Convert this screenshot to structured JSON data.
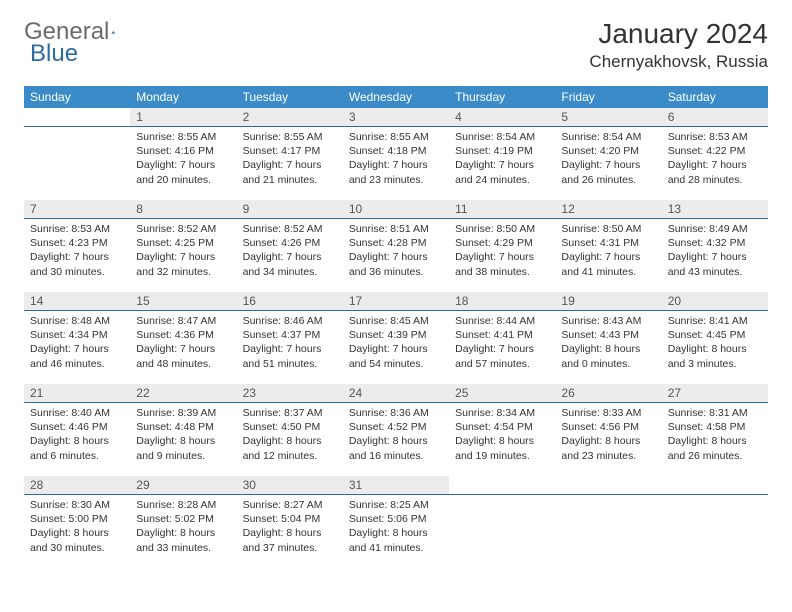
{
  "brand": {
    "name_part1": "General",
    "name_part2": "Blue"
  },
  "colors": {
    "header_bg": "#3b8bc8",
    "header_text": "#ffffff",
    "daynum_bg": "#ececec",
    "daynum_border": "#2d6aa0",
    "body_text": "#333333",
    "logo_gray": "#6a6a6a",
    "logo_blue": "#2d6aa0"
  },
  "title": "January 2024",
  "location": "Chernyakhovsk, Russia",
  "day_headers": [
    "Sunday",
    "Monday",
    "Tuesday",
    "Wednesday",
    "Thursday",
    "Friday",
    "Saturday"
  ],
  "weeks": [
    [
      {
        "num": "",
        "sunrise": "",
        "sunset": "",
        "daylight": ""
      },
      {
        "num": "1",
        "sunrise": "Sunrise: 8:55 AM",
        "sunset": "Sunset: 4:16 PM",
        "daylight": "Daylight: 7 hours and 20 minutes."
      },
      {
        "num": "2",
        "sunrise": "Sunrise: 8:55 AM",
        "sunset": "Sunset: 4:17 PM",
        "daylight": "Daylight: 7 hours and 21 minutes."
      },
      {
        "num": "3",
        "sunrise": "Sunrise: 8:55 AM",
        "sunset": "Sunset: 4:18 PM",
        "daylight": "Daylight: 7 hours and 23 minutes."
      },
      {
        "num": "4",
        "sunrise": "Sunrise: 8:54 AM",
        "sunset": "Sunset: 4:19 PM",
        "daylight": "Daylight: 7 hours and 24 minutes."
      },
      {
        "num": "5",
        "sunrise": "Sunrise: 8:54 AM",
        "sunset": "Sunset: 4:20 PM",
        "daylight": "Daylight: 7 hours and 26 minutes."
      },
      {
        "num": "6",
        "sunrise": "Sunrise: 8:53 AM",
        "sunset": "Sunset: 4:22 PM",
        "daylight": "Daylight: 7 hours and 28 minutes."
      }
    ],
    [
      {
        "num": "7",
        "sunrise": "Sunrise: 8:53 AM",
        "sunset": "Sunset: 4:23 PM",
        "daylight": "Daylight: 7 hours and 30 minutes."
      },
      {
        "num": "8",
        "sunrise": "Sunrise: 8:52 AM",
        "sunset": "Sunset: 4:25 PM",
        "daylight": "Daylight: 7 hours and 32 minutes."
      },
      {
        "num": "9",
        "sunrise": "Sunrise: 8:52 AM",
        "sunset": "Sunset: 4:26 PM",
        "daylight": "Daylight: 7 hours and 34 minutes."
      },
      {
        "num": "10",
        "sunrise": "Sunrise: 8:51 AM",
        "sunset": "Sunset: 4:28 PM",
        "daylight": "Daylight: 7 hours and 36 minutes."
      },
      {
        "num": "11",
        "sunrise": "Sunrise: 8:50 AM",
        "sunset": "Sunset: 4:29 PM",
        "daylight": "Daylight: 7 hours and 38 minutes."
      },
      {
        "num": "12",
        "sunrise": "Sunrise: 8:50 AM",
        "sunset": "Sunset: 4:31 PM",
        "daylight": "Daylight: 7 hours and 41 minutes."
      },
      {
        "num": "13",
        "sunrise": "Sunrise: 8:49 AM",
        "sunset": "Sunset: 4:32 PM",
        "daylight": "Daylight: 7 hours and 43 minutes."
      }
    ],
    [
      {
        "num": "14",
        "sunrise": "Sunrise: 8:48 AM",
        "sunset": "Sunset: 4:34 PM",
        "daylight": "Daylight: 7 hours and 46 minutes."
      },
      {
        "num": "15",
        "sunrise": "Sunrise: 8:47 AM",
        "sunset": "Sunset: 4:36 PM",
        "daylight": "Daylight: 7 hours and 48 minutes."
      },
      {
        "num": "16",
        "sunrise": "Sunrise: 8:46 AM",
        "sunset": "Sunset: 4:37 PM",
        "daylight": "Daylight: 7 hours and 51 minutes."
      },
      {
        "num": "17",
        "sunrise": "Sunrise: 8:45 AM",
        "sunset": "Sunset: 4:39 PM",
        "daylight": "Daylight: 7 hours and 54 minutes."
      },
      {
        "num": "18",
        "sunrise": "Sunrise: 8:44 AM",
        "sunset": "Sunset: 4:41 PM",
        "daylight": "Daylight: 7 hours and 57 minutes."
      },
      {
        "num": "19",
        "sunrise": "Sunrise: 8:43 AM",
        "sunset": "Sunset: 4:43 PM",
        "daylight": "Daylight: 8 hours and 0 minutes."
      },
      {
        "num": "20",
        "sunrise": "Sunrise: 8:41 AM",
        "sunset": "Sunset: 4:45 PM",
        "daylight": "Daylight: 8 hours and 3 minutes."
      }
    ],
    [
      {
        "num": "21",
        "sunrise": "Sunrise: 8:40 AM",
        "sunset": "Sunset: 4:46 PM",
        "daylight": "Daylight: 8 hours and 6 minutes."
      },
      {
        "num": "22",
        "sunrise": "Sunrise: 8:39 AM",
        "sunset": "Sunset: 4:48 PM",
        "daylight": "Daylight: 8 hours and 9 minutes."
      },
      {
        "num": "23",
        "sunrise": "Sunrise: 8:37 AM",
        "sunset": "Sunset: 4:50 PM",
        "daylight": "Daylight: 8 hours and 12 minutes."
      },
      {
        "num": "24",
        "sunrise": "Sunrise: 8:36 AM",
        "sunset": "Sunset: 4:52 PM",
        "daylight": "Daylight: 8 hours and 16 minutes."
      },
      {
        "num": "25",
        "sunrise": "Sunrise: 8:34 AM",
        "sunset": "Sunset: 4:54 PM",
        "daylight": "Daylight: 8 hours and 19 minutes."
      },
      {
        "num": "26",
        "sunrise": "Sunrise: 8:33 AM",
        "sunset": "Sunset: 4:56 PM",
        "daylight": "Daylight: 8 hours and 23 minutes."
      },
      {
        "num": "27",
        "sunrise": "Sunrise: 8:31 AM",
        "sunset": "Sunset: 4:58 PM",
        "daylight": "Daylight: 8 hours and 26 minutes."
      }
    ],
    [
      {
        "num": "28",
        "sunrise": "Sunrise: 8:30 AM",
        "sunset": "Sunset: 5:00 PM",
        "daylight": "Daylight: 8 hours and 30 minutes."
      },
      {
        "num": "29",
        "sunrise": "Sunrise: 8:28 AM",
        "sunset": "Sunset: 5:02 PM",
        "daylight": "Daylight: 8 hours and 33 minutes."
      },
      {
        "num": "30",
        "sunrise": "Sunrise: 8:27 AM",
        "sunset": "Sunset: 5:04 PM",
        "daylight": "Daylight: 8 hours and 37 minutes."
      },
      {
        "num": "31",
        "sunrise": "Sunrise: 8:25 AM",
        "sunset": "Sunset: 5:06 PM",
        "daylight": "Daylight: 8 hours and 41 minutes."
      },
      {
        "num": "",
        "sunrise": "",
        "sunset": "",
        "daylight": ""
      },
      {
        "num": "",
        "sunrise": "",
        "sunset": "",
        "daylight": ""
      },
      {
        "num": "",
        "sunrise": "",
        "sunset": "",
        "daylight": ""
      }
    ]
  ]
}
